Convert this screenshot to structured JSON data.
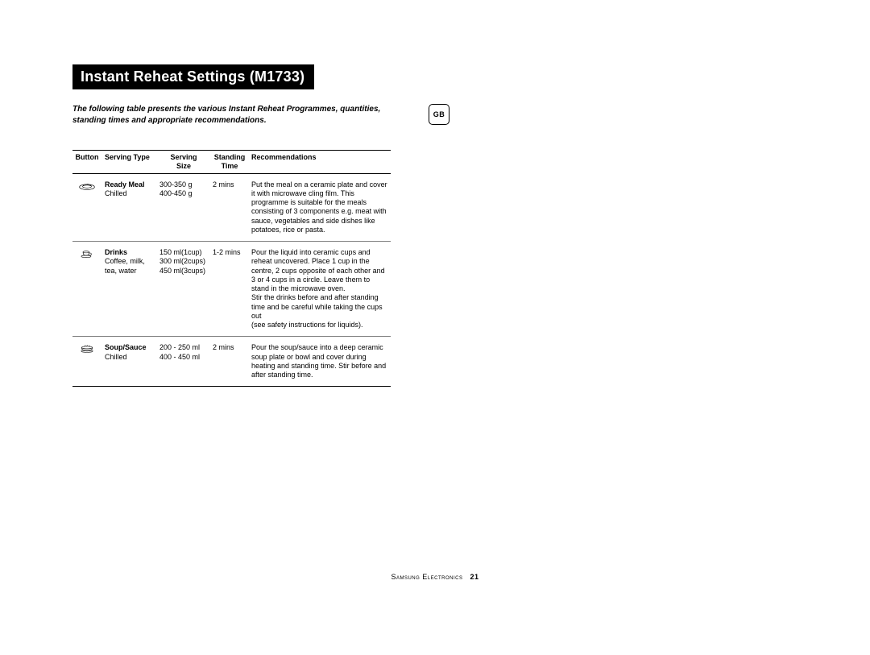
{
  "title": "Instant Reheat Settings (M1733)",
  "intro": "The following table presents the various Instant Reheat Programmes, quantities, standing times and appropriate recommendations.",
  "badge": "GB",
  "columns": {
    "button": "Button",
    "type": "Serving Type",
    "size": "Serving\nSize",
    "time": "Standing\nTime",
    "rec": "Recommendations"
  },
  "rows": [
    {
      "icon": "plate",
      "type_bold": "Ready Meal",
      "type_sub": "Chilled",
      "size": "300-350 g\n400-450 g",
      "time": "2 mins",
      "rec": "Put the meal on a ceramic plate and cover it with microwave cling film. This programme is suitable for the meals consisting of  3 components e.g. meat with sauce, vegetables and side dishes like potatoes, rice or pasta."
    },
    {
      "icon": "cup",
      "type_bold": "Drinks",
      "type_sub": "Coffee, milk, tea, water",
      "size": "150 ml(1cup)\n300 ml(2cups)\n450 ml(3cups)",
      "time": "1-2 mins",
      "rec": "Pour the liquid into ceramic cups and reheat uncovered. Place 1 cup in the centre, 2 cups opposite of each other and 3 or 4 cups in a circle. Leave them to stand in the microwave oven.\nStir the drinks before and after standing time and be careful while taking the cups out\n(see safety instructions for liquids)."
    },
    {
      "icon": "bowl",
      "type_bold": "Soup/Sauce",
      "type_sub": "Chilled",
      "size": "200 - 250 ml\n400 - 450 ml",
      "time": "2 mins",
      "rec": "Pour the soup/sauce into a deep ceramic soup plate or bowl and cover during heating and standing time. Stir before and after standing time."
    }
  ],
  "footer_company": "Samsung Electronics",
  "footer_page": "21"
}
